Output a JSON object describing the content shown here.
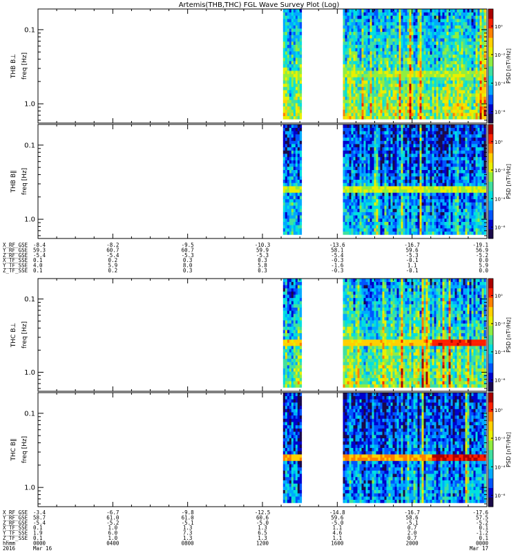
{
  "title": "Artemis(THB,THC) FGL Wave Survey Plot (Log)",
  "colorscale": [
    "#1a0a4a",
    "#0000cc",
    "#0055ff",
    "#00aaff",
    "#00e0e0",
    "#40e0a0",
    "#90ee40",
    "#e8f000",
    "#ffd000",
    "#ff8000",
    "#ff2000",
    "#aa0000"
  ],
  "panels": [
    {
      "probe": "THB",
      "comp": "B⊥",
      "ylabel": "freq [Hz]",
      "cbar_label": "PSD [nT²/Hz]",
      "cbar_ticks": [
        "10⁰",
        "10⁻²",
        "10⁻⁴",
        "10⁻⁶"
      ],
      "yticks": [
        "1.0",
        "0.1"
      ],
      "base": 0.58,
      "hf": 0.3,
      "band_strength": 0.55
    },
    {
      "probe": "THB",
      "comp": "B∥",
      "ylabel": "freq [Hz]",
      "cbar_label": "PSD [nT²/Hz]",
      "cbar_ticks": [
        "10⁰",
        "10⁻²",
        "10⁻⁴",
        "10⁻⁶"
      ],
      "yticks": [
        "1.0",
        "0.1"
      ],
      "base": 0.34,
      "hf": 0.18,
      "band_strength": 0.6
    },
    {
      "probe": "THC",
      "comp": "B⊥",
      "ylabel": "freq [Hz]",
      "cbar_label": "PSD [nT²/Hz]",
      "cbar_ticks": [
        "10⁰",
        "10⁻²",
        "10⁻⁴",
        "10⁻⁶"
      ],
      "yticks": [
        "1.0",
        "0.1"
      ],
      "base": 0.55,
      "hf": 0.28,
      "band_strength": 0.7
    },
    {
      "probe": "THC",
      "comp": "B∥",
      "ylabel": "freq [Hz]",
      "cbar_label": "PSD [nT²/Hz]",
      "cbar_ticks": [
        "10⁰",
        "10⁻²",
        "10⁻⁴",
        "10⁻⁶"
      ],
      "yticks": [
        "1.0",
        "0.1"
      ],
      "base": 0.3,
      "hf": 0.15,
      "band_strength": 0.75
    }
  ],
  "ephem_top": {
    "labels": [
      "X_RF_GSE",
      "Y_RF_GSE",
      "Z_RF_GSE",
      "X_TF_SSE",
      "Y_TF_SSE",
      "Z_TF_SSE"
    ],
    "columns": [
      [
        "-8.4",
        "59.3",
        "-5.4",
        "0.1",
        "4.0",
        "0.1"
      ],
      [
        "-8.2",
        "60.7",
        "-5.4",
        "0.2",
        "5.9",
        "0.2"
      ],
      [
        "-9.5",
        "60.7",
        "-5.3",
        "0.3",
        "8.0",
        "0.3"
      ],
      [
        "-10.3",
        "59.9",
        "-5.3",
        "0.3",
        "5.8",
        "0.3"
      ],
      [
        "-13.6",
        "58.1",
        "-5.4",
        "-0.3",
        "-1.6",
        "-0.3"
      ],
      [
        "-16.7",
        "59.6",
        "-5.3",
        "-0.1",
        "1.1",
        "-0.1"
      ],
      [
        "-19.1",
        "56.9",
        "-5.2",
        "0.0",
        "5.9",
        "0.0"
      ]
    ]
  },
  "ephem_bottom": {
    "labels": [
      "X_RF_GSE",
      "Y_RF_GSE",
      "Z_RF_GSE",
      "X_TF_SSE",
      "Y_TF_SSE",
      "Z_TF_SSE",
      "hhmm",
      "2016"
    ],
    "columns": [
      [
        "-3.4",
        "58.7",
        "-5.4",
        "0.1",
        "1.9",
        "0.1",
        "0000",
        "Mar 16"
      ],
      [
        "-6.7",
        "61.0",
        "-5.2",
        "1.0",
        "6.0",
        "1.0",
        "0400",
        ""
      ],
      [
        "-9.8",
        "61.0",
        "-5.1",
        "1.3",
        "7.3",
        "1.3",
        "0800",
        ""
      ],
      [
        "-12.5",
        "60.6",
        "-5.0",
        "1.3",
        "6.5",
        "1.3",
        "1200",
        ""
      ],
      [
        "-14.8",
        "59.6",
        "-5.0",
        "1.1",
        "4.6",
        "1.1",
        "1600",
        ""
      ],
      [
        "-16.7",
        "58.6",
        "-5.1",
        "0.7",
        "2.0",
        "0.7",
        "2000",
        ""
      ],
      [
        "-17.6",
        "57.5",
        "-5.2",
        "0.1",
        "-1.2",
        "0.1",
        "0000",
        "Mar 17"
      ]
    ]
  },
  "chart_data": {
    "type": "heatmap",
    "title": "Artemis(THB,THC) FGL Wave Survey Plot (Log)",
    "xlabel": "hhmm",
    "x_ticks": [
      "0000",
      "0400",
      "0800",
      "1200",
      "1600",
      "2000",
      "0000"
    ],
    "x_range_hours": [
      0,
      24
    ],
    "y_scale": "log",
    "y_ticks_hz": [
      0.1,
      1.0
    ],
    "y_range_hz": [
      0.055,
      1.9
    ],
    "z_scale": "log",
    "z_label": "PSD [nT²/Hz]",
    "z_ticks": [
      1.0,
      0.01,
      0.0001,
      1e-06
    ],
    "data_intervals_hours": [
      [
        13.1,
        14.2
      ],
      [
        16.3,
        24.0
      ]
    ],
    "enhanced_band_hz": [
      0.24,
      0.29
    ],
    "panels": [
      "THB B⊥",
      "THB B∥",
      "THC B⊥",
      "THC B∥"
    ]
  }
}
